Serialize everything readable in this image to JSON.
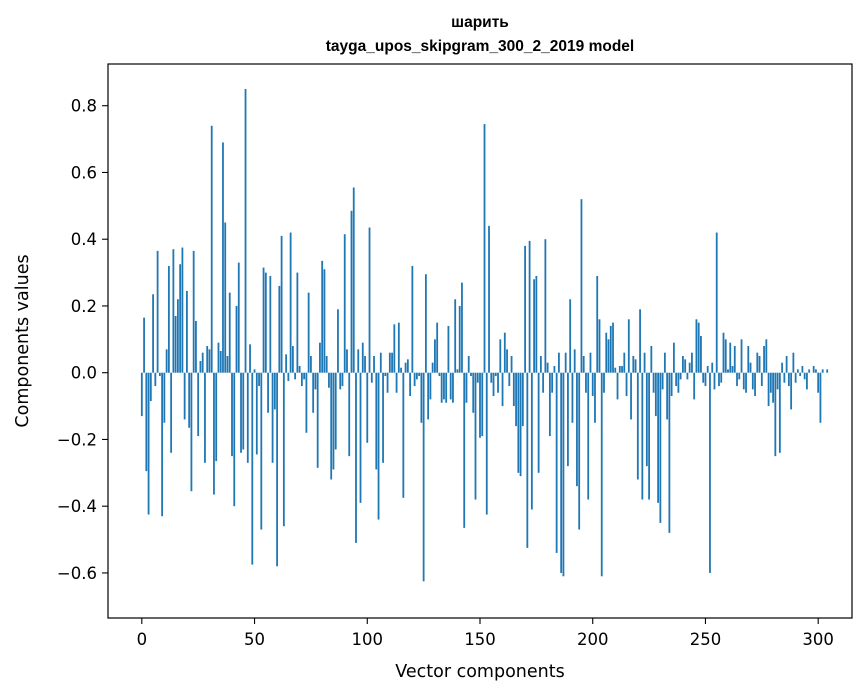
{
  "chart_data": {
    "type": "bar",
    "title_line1": "шарить",
    "title_line2": "tayga_upos_skipgram_300_2_2019 model",
    "xlabel": "Vector components",
    "ylabel": "Components values",
    "xlim": [
      -15,
      315
    ],
    "ylim": [
      -0.735,
      0.925
    ],
    "xticks": [
      0,
      50,
      100,
      150,
      200,
      250,
      300
    ],
    "xtick_labels": [
      "0",
      "50",
      "100",
      "150",
      "200",
      "250",
      "300"
    ],
    "yticks": [
      -0.6,
      -0.4,
      -0.2,
      0.0,
      0.2,
      0.4,
      0.6,
      0.8
    ],
    "ytick_labels": [
      "−0.6",
      "−0.4",
      "−0.2",
      "0.0",
      "0.2",
      "0.4",
      "0.6",
      "0.8"
    ],
    "bar_color": "#1f77b4",
    "grid": false,
    "values": [
      -0.13,
      0.165,
      -0.295,
      -0.425,
      -0.085,
      0.235,
      -0.04,
      0.365,
      -0.01,
      -0.43,
      -0.15,
      0.07,
      0.32,
      -0.24,
      0.37,
      0.17,
      0.22,
      0.325,
      0.375,
      -0.14,
      0.245,
      -0.165,
      -0.355,
      0.365,
      0.155,
      -0.19,
      0.035,
      0.06,
      -0.27,
      0.08,
      0.07,
      0.74,
      -0.365,
      -0.265,
      0.09,
      0.065,
      0.69,
      0.45,
      0.05,
      0.24,
      -0.25,
      -0.4,
      0.2,
      0.33,
      -0.24,
      -0.23,
      0.85,
      -0.27,
      0.085,
      -0.575,
      0.01,
      -0.245,
      -0.04,
      -0.47,
      0.315,
      0.3,
      -0.12,
      0.29,
      -0.27,
      -0.11,
      -0.58,
      0.26,
      0.41,
      -0.46,
      0.055,
      -0.025,
      0.42,
      0.08,
      -0.02,
      0.3,
      0.02,
      -0.04,
      -0.02,
      -0.18,
      0.24,
      0.05,
      -0.12,
      -0.05,
      -0.285,
      0.09,
      0.335,
      0.31,
      0.05,
      -0.045,
      -0.32,
      -0.29,
      -0.23,
      0.19,
      -0.05,
      -0.04,
      0.415,
      0.07,
      -0.25,
      0.485,
      0.555,
      -0.51,
      0.07,
      -0.39,
      0.09,
      0.05,
      -0.21,
      0.435,
      -0.03,
      0.05,
      -0.29,
      -0.44,
      0.06,
      -0.27,
      -0.01,
      -0.06,
      0.06,
      0.06,
      0.145,
      -0.06,
      0.15,
      0.015,
      -0.375,
      0.03,
      0.04,
      -0.07,
      0.32,
      -0.04,
      -0.02,
      -0.01,
      -0.15,
      -0.625,
      0.295,
      -0.14,
      -0.08,
      0.03,
      0.1,
      0.15,
      -0.01,
      -0.09,
      -0.08,
      -0.09,
      0.14,
      -0.08,
      -0.09,
      0.22,
      0.01,
      0.2,
      0.27,
      -0.465,
      -0.09,
      0.05,
      -0.01,
      -0.12,
      -0.38,
      -0.03,
      -0.195,
      -0.19,
      0.745,
      -0.425,
      0.44,
      -0.03,
      -0.07,
      -0.01,
      -0.06,
      0.1,
      -0.1,
      0.12,
      0.07,
      -0.04,
      0.05,
      -0.1,
      -0.16,
      -0.3,
      -0.31,
      -0.16,
      0.38,
      -0.525,
      0.395,
      -0.41,
      0.28,
      0.29,
      -0.3,
      0.05,
      -0.06,
      0.4,
      0.03,
      -0.19,
      -0.06,
      0.02,
      -0.54,
      0.06,
      -0.6,
      -0.61,
      0.06,
      -0.28,
      0.22,
      -0.15,
      0.07,
      -0.34,
      -0.47,
      0.52,
      0.05,
      -0.06,
      -0.38,
      0.06,
      -0.07,
      -0.15,
      0.29,
      0.16,
      -0.61,
      -0.06,
      0.12,
      0.1,
      0.14,
      0.15,
      0.015,
      -0.08,
      0.02,
      0.02,
      0.06,
      -0.07,
      0.16,
      -0.14,
      0.05,
      0.04,
      -0.32,
      0.19,
      -0.38,
      0.06,
      -0.28,
      -0.38,
      0.08,
      -0.06,
      -0.13,
      -0.39,
      -0.45,
      -0.05,
      0.06,
      -0.14,
      -0.48,
      -0.07,
      0.09,
      -0.04,
      -0.06,
      -0.02,
      0.05,
      0.04,
      -0.02,
      0.03,
      0.06,
      -0.08,
      0.16,
      0.15,
      0.11,
      -0.03,
      -0.04,
      0.02,
      -0.6,
      0.03,
      -0.05,
      0.42,
      -0.04,
      -0.03,
      0.12,
      0.1,
      0.01,
      0.09,
      0.02,
      0.08,
      -0.04,
      -0.02,
      0.1,
      -0.05,
      -0.06,
      0.08,
      0.03,
      -0.05,
      -0.07,
      0.06,
      0.05,
      -0.04,
      0.08,
      0.1,
      -0.1,
      -0.06,
      -0.09,
      -0.25,
      -0.05,
      -0.24,
      0.03,
      -0.03,
      0.05,
      -0.04,
      -0.11,
      0.06,
      -0.03,
      0.01,
      -0.01,
      0.02,
      -0.02,
      -0.05,
      0.01,
      0.0,
      0.02,
      0.01,
      -0.06,
      -0.15,
      0.01,
      0.0,
      0.01
    ]
  }
}
